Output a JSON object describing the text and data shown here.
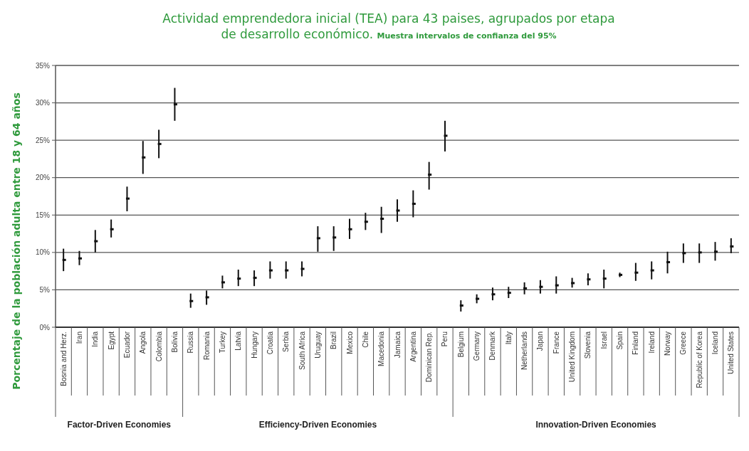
{
  "chart_data": {
    "type": "scatter",
    "title": "Actividad emprendedora inicial (TEA) para 43 paises, agrupados por etapa de desarrollo económico.",
    "subtitle": "Muestra intervalos de confianza del 95%",
    "ylabel": "Porcentaje de la población adulta entre 18 y 64 años",
    "categories": [
      "Bosnia and Herz.",
      "Iran",
      "India",
      "Egypt",
      "Ecuador",
      "Angola",
      "Colombia",
      "Bolivia",
      "Russia",
      "Romania",
      "Turkey",
      "Latvia",
      "Hungary",
      "Croatia",
      "Serbia",
      "South Africa",
      "Uruguay",
      "Brazil",
      "Mexico",
      "Chile",
      "Macedonia",
      "Jamaica",
      "Argentina",
      "Dominican Rep.",
      "Peru",
      "Belgium",
      "Germany",
      "Denmark",
      "Italy",
      "Netherlands",
      "Japan",
      "France",
      "United Kingdom",
      "Slovenia",
      "Israel",
      "Spain",
      "Finland",
      "Ireland",
      "Norway",
      "Greece",
      "Republic of Korea",
      "Iceland",
      "United States"
    ],
    "series": [
      {
        "color": "#111111",
        "values": [
          9.0,
          9.2,
          11.5,
          13.1,
          17.2,
          22.7,
          24.5,
          29.8,
          3.5,
          4.0,
          6.0,
          6.5,
          6.6,
          7.6,
          7.6,
          7.8,
          11.9,
          12.0,
          13.1,
          14.1,
          14.5,
          15.6,
          16.5,
          20.4,
          25.6,
          2.9,
          3.8,
          4.4,
          4.6,
          5.2,
          5.4,
          5.6,
          5.9,
          6.4,
          6.5,
          7.0,
          7.3,
          7.6,
          8.7,
          9.9,
          10.0,
          10.1,
          10.8
        ],
        "errors": [
          [
            7.5,
            10.5
          ],
          [
            8.3,
            10.2
          ],
          [
            10.0,
            13.0
          ],
          [
            12.0,
            14.4
          ],
          [
            15.5,
            18.8
          ],
          [
            20.5,
            24.9
          ],
          [
            22.6,
            26.4
          ],
          [
            27.6,
            32.0
          ],
          [
            2.6,
            4.5
          ],
          [
            3.0,
            4.9
          ],
          [
            5.2,
            6.9
          ],
          [
            5.5,
            7.7
          ],
          [
            5.5,
            7.6
          ],
          [
            6.5,
            8.8
          ],
          [
            6.5,
            8.8
          ],
          [
            6.8,
            8.8
          ],
          [
            10.1,
            13.5
          ],
          [
            10.2,
            13.5
          ],
          [
            11.8,
            14.5
          ],
          [
            13.0,
            15.3
          ],
          [
            12.6,
            16.1
          ],
          [
            14.1,
            17.1
          ],
          [
            14.7,
            18.3
          ],
          [
            18.4,
            22.1
          ],
          [
            23.5,
            27.6
          ],
          [
            2.1,
            3.6
          ],
          [
            3.2,
            4.4
          ],
          [
            3.6,
            5.3
          ],
          [
            3.9,
            5.4
          ],
          [
            4.4,
            6.0
          ],
          [
            4.5,
            6.3
          ],
          [
            4.5,
            6.8
          ],
          [
            5.3,
            6.6
          ],
          [
            5.6,
            7.2
          ],
          [
            5.2,
            7.7
          ],
          [
            6.7,
            7.3
          ],
          [
            6.2,
            8.6
          ],
          [
            6.4,
            8.8
          ],
          [
            7.2,
            10.1
          ],
          [
            8.6,
            11.2
          ],
          [
            8.6,
            11.2
          ],
          [
            8.9,
            11.4
          ],
          [
            9.9,
            11.9
          ]
        ]
      }
    ],
    "ylim": [
      0,
      35
    ],
    "yticks": [
      {
        "value": 0,
        "label": "0%"
      },
      {
        "value": 5,
        "label": "5%"
      },
      {
        "value": 10,
        "label": "10%"
      },
      {
        "value": 15,
        "label": "15%"
      },
      {
        "value": 20,
        "label": "20%"
      },
      {
        "value": 25,
        "label": "25%"
      },
      {
        "value": 30,
        "label": "30%"
      },
      {
        "value": 35,
        "label": "35%"
      }
    ],
    "grid": "y",
    "marker": "square",
    "annotations": [
      "Factor-Driven Economies",
      "Efficiency-Driven Economies",
      "Innovation-Driven Economies"
    ]
  }
}
